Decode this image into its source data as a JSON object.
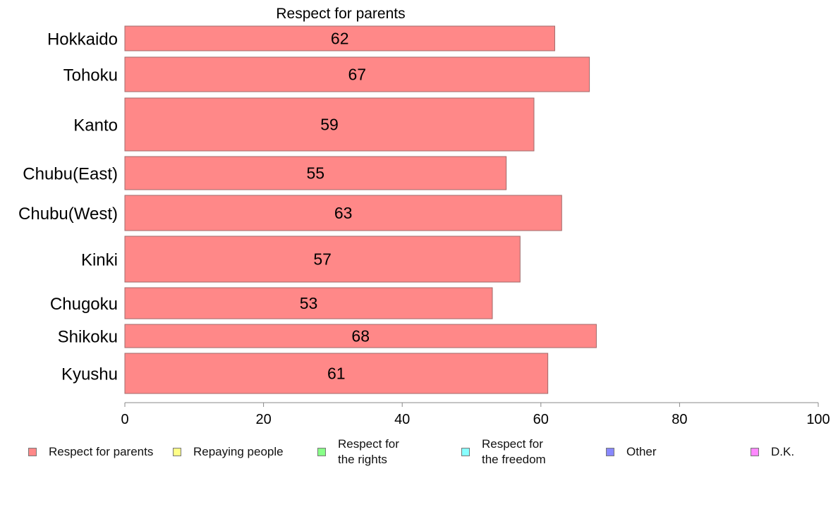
{
  "chart_data": {
    "type": "bar",
    "orientation": "horizontal",
    "title": "Respect for parents",
    "categories": [
      "Hokkaido",
      "Tohoku",
      "Kanto",
      "Chubu(East)",
      "Chubu(West)",
      "Kinki",
      "Chugoku",
      "Shikoku",
      "Kyushu"
    ],
    "series": [
      {
        "name": "Respect for parents",
        "values": [
          62,
          67,
          59,
          55,
          63,
          57,
          53,
          68,
          61
        ]
      }
    ],
    "xlim": [
      0,
      100
    ],
    "xticks": [
      0,
      20,
      40,
      60,
      80,
      100
    ],
    "grid": false,
    "legend_position": "bottom",
    "legend": [
      {
        "label": "Respect for parents",
        "color": "#ff8888"
      },
      {
        "label": "Repaying people",
        "color": "#ffff88"
      },
      {
        "label": "Respect for\nthe rights",
        "color": "#88ff88"
      },
      {
        "label": "Respect for\nthe freedom",
        "color": "#88ffff"
      },
      {
        "label": "Other",
        "color": "#8888ff"
      },
      {
        "label": "D.K.",
        "color": "#ff88ff"
      }
    ],
    "bar_color": "#ff8888",
    "bar_edge_color": "#a06a6a",
    "axis_color": "#888888"
  }
}
